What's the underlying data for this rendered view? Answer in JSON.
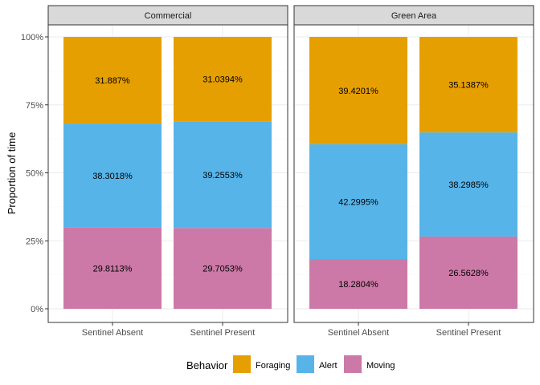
{
  "chart_data": {
    "type": "bar",
    "stacked": true,
    "facets": [
      "Commercial",
      "Green Area"
    ],
    "categories": [
      "Sentinel Absent",
      "Sentinel Present"
    ],
    "ylabel": "Proportion of time",
    "xlabel": "",
    "ylim": [
      0,
      1
    ],
    "yticks": [
      "0%",
      "25%",
      "50%",
      "75%",
      "100%"
    ],
    "grid": true,
    "legend": {
      "title": "Behavior",
      "placement": "bottom",
      "entries": [
        "Foraging",
        "Alert",
        "Moving"
      ]
    },
    "colors": {
      "Foraging": "#E69F00",
      "Alert": "#56B4E9",
      "Moving": "#CC79A7"
    },
    "series": [
      {
        "name": "Moving",
        "values": [
          [
            0.298113,
            0.297053
          ],
          [
            0.182804,
            0.265628
          ]
        ],
        "labels": [
          [
            "29.8113%",
            "29.7053%"
          ],
          [
            "18.2804%",
            "26.5628%"
          ]
        ]
      },
      {
        "name": "Alert",
        "values": [
          [
            0.383018,
            0.392553
          ],
          [
            0.422995,
            0.382985
          ]
        ],
        "labels": [
          [
            "38.3018%",
            "39.2553%"
          ],
          [
            "42.2995%",
            "38.2985%"
          ]
        ]
      },
      {
        "name": "Foraging",
        "values": [
          [
            0.31887,
            0.310394
          ],
          [
            0.394201,
            0.351387
          ]
        ],
        "labels": [
          [
            "31.887%",
            "31.0394%"
          ],
          [
            "39.4201%",
            "35.1387%"
          ]
        ]
      }
    ]
  }
}
